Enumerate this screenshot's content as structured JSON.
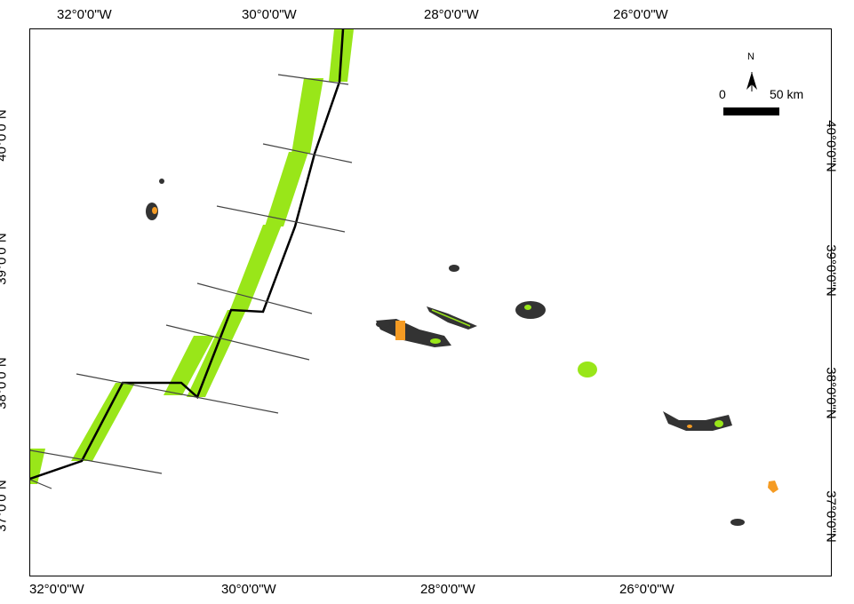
{
  "axes": {
    "top_lon": [
      "32°0'0\"W",
      "30°0'0\"W",
      "28°0'0\"W",
      "26°0'0\"W"
    ],
    "bottom_lon": [
      "32°0'0\"W",
      "30°0'0\"W",
      "28°0'0\"W",
      "26°0'0\"W"
    ],
    "left_lat": [
      "40°0'0\"N",
      "39°0'0\"N",
      "38°0'0\"N",
      "37°0'0\"N"
    ],
    "right_lat": [
      "40°0'0\"N",
      "39°0'0\"N",
      "38°0'0\"N",
      "37°0'0\"N"
    ]
  },
  "scale_bar": {
    "zero": "0",
    "end": "50 km"
  },
  "north_arrow": {
    "label": "N"
  },
  "colors": {
    "green": "#99e619",
    "dark": "#333333",
    "orange": "#f59b23",
    "line": "#000000",
    "grey_line": "#444444"
  }
}
